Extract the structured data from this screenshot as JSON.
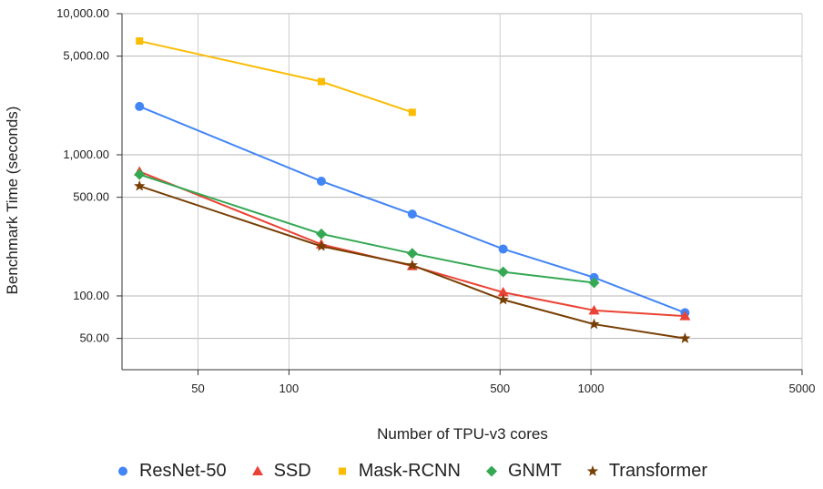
{
  "chart_data": {
    "type": "line",
    "title": "",
    "xlabel": "Number of TPU-v3 cores",
    "ylabel": "Benchmark Time (seconds)",
    "xscale": "log",
    "yscale": "log",
    "xlim": [
      28,
      5000
    ],
    "ylim": [
      30,
      10000
    ],
    "x_ticks": [
      {
        "value": 50,
        "label": "50"
      },
      {
        "value": 100,
        "label": "100"
      },
      {
        "value": 500,
        "label": "500"
      },
      {
        "value": 1000,
        "label": "1000"
      },
      {
        "value": 5000,
        "label": "5000"
      }
    ],
    "y_ticks": [
      {
        "value": 50,
        "label": "50.00"
      },
      {
        "value": 100,
        "label": "100.00"
      },
      {
        "value": 500,
        "label": "500.00"
      },
      {
        "value": 1000,
        "label": "1,000.00"
      },
      {
        "value": 5000,
        "label": "5,000.00"
      },
      {
        "value": 10000,
        "label": "10,000.00"
      }
    ],
    "grid": true,
    "legend_position": "bottom",
    "series": [
      {
        "name": "ResNet-50",
        "color": "#4285f4",
        "marker": "circle",
        "x": [
          32,
          128,
          256,
          512,
          1024,
          2048
        ],
        "y": [
          2200,
          650,
          380,
          215,
          135,
          76
        ]
      },
      {
        "name": "SSD",
        "color": "#ea4335",
        "marker": "triangle",
        "x": [
          32,
          128,
          256,
          512,
          1024,
          2048
        ],
        "y": [
          760,
          232,
          163,
          106,
          79,
          72
        ]
      },
      {
        "name": "Mask-RCNN",
        "color": "#fbbc04",
        "marker": "square",
        "x": [
          32,
          128,
          256
        ],
        "y": [
          6400,
          3300,
          2000
        ]
      },
      {
        "name": "GNMT",
        "color": "#34a853",
        "marker": "diamond",
        "x": [
          32,
          128,
          256,
          512,
          1024
        ],
        "y": [
          725,
          275,
          200,
          148,
          124
        ]
      },
      {
        "name": "Transformer",
        "color": "#783f04",
        "marker": "star",
        "x": [
          32,
          128,
          256,
          512,
          1024,
          2048
        ],
        "y": [
          600,
          225,
          165,
          94,
          63,
          50
        ]
      }
    ]
  }
}
